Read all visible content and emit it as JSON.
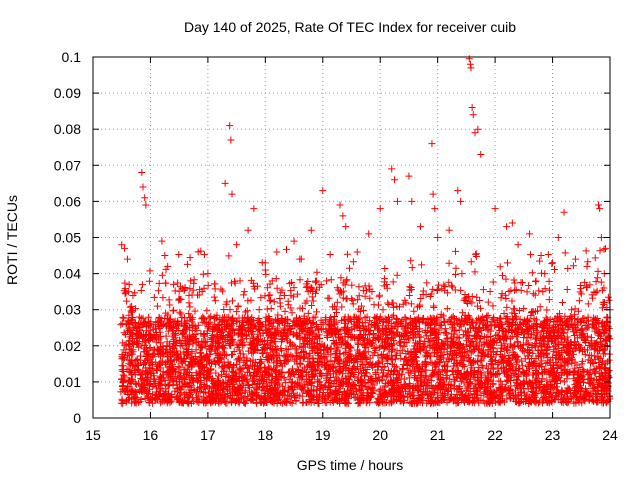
{
  "chart_data": {
    "type": "scatter",
    "title": "Day 140 of 2025, Rate Of TEC Index for receiver cuib",
    "xlabel": "GPS time / hours",
    "ylabel": "ROTI / TECUs",
    "xlim": [
      15,
      24
    ],
    "ylim": [
      0,
      0.1
    ],
    "x_ticks": [
      15,
      16,
      17,
      18,
      19,
      20,
      21,
      22,
      23,
      24
    ],
    "x_tick_labels": [
      "15",
      "16",
      "17",
      "18",
      "19",
      "20",
      "21",
      "22",
      "23",
      "24"
    ],
    "y_ticks": [
      0,
      0.01,
      0.02,
      0.03,
      0.04,
      0.05,
      0.06,
      0.07,
      0.08,
      0.09,
      0.1
    ],
    "y_tick_labels": [
      "0",
      "0.01",
      "0.02",
      "0.03",
      "0.04",
      "0.05",
      "0.06",
      "0.07",
      "0.08",
      "0.09",
      "0.1"
    ],
    "grid": true,
    "marker": "+",
    "color": "#ff0000",
    "series": [
      {
        "name": "ROTI",
        "x": [
          15.5,
          15.55,
          15.6,
          15.63,
          15.85,
          15.87,
          15.9,
          15.92,
          16.2,
          16.25,
          16.3,
          16.5,
          16.7,
          16.9,
          17.0,
          17.3,
          17.38,
          17.4,
          17.42,
          17.5,
          17.7,
          17.8,
          18.0,
          18.2,
          18.5,
          18.6,
          18.8,
          19.0,
          19.3,
          19.35,
          19.4,
          19.6,
          19.8,
          20.0,
          20.2,
          20.25,
          20.3,
          20.5,
          20.55,
          20.7,
          20.9,
          20.92,
          20.95,
          21.0,
          21.2,
          21.35,
          21.4,
          21.55,
          21.57,
          21.58,
          21.6,
          21.62,
          21.65,
          21.7,
          21.75,
          22.0,
          22.2,
          22.3,
          22.4,
          22.6,
          22.8,
          23.0,
          23.1,
          23.2,
          23.4,
          23.6,
          23.8,
          23.82,
          23.85,
          23.9,
          24.0
        ],
        "y": [
          0.048,
          0.047,
          0.044,
          0.037,
          0.068,
          0.064,
          0.061,
          0.059,
          0.049,
          0.045,
          0.042,
          0.033,
          0.038,
          0.035,
          0.04,
          0.065,
          0.081,
          0.077,
          0.062,
          0.048,
          0.052,
          0.058,
          0.041,
          0.046,
          0.049,
          0.044,
          0.052,
          0.063,
          0.059,
          0.056,
          0.053,
          0.046,
          0.051,
          0.058,
          0.069,
          0.066,
          0.06,
          0.067,
          0.06,
          0.053,
          0.076,
          0.062,
          0.058,
          0.05,
          0.052,
          0.063,
          0.06,
          0.0995,
          0.098,
          0.097,
          0.086,
          0.084,
          0.079,
          0.08,
          0.073,
          0.058,
          0.053,
          0.054,
          0.048,
          0.051,
          0.045,
          0.043,
          0.05,
          0.057,
          0.044,
          0.042,
          0.059,
          0.058,
          0.05,
          0.04,
          0.03
        ]
      }
    ],
    "noise_cloud": {
      "x_range": [
        15.48,
        24.0
      ],
      "typical_y_range": [
        0.004,
        0.028
      ],
      "median_y": 0.015,
      "point_count": 5200
    }
  }
}
